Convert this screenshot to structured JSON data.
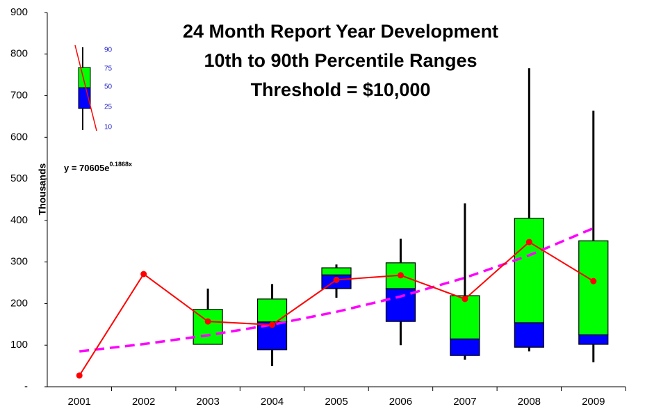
{
  "chart_data": {
    "type": "box",
    "title": [
      "24 Month Report Year Development",
      "10th to 90th Percentile Ranges",
      "Threshold = $10,000"
    ],
    "y_label": "Thousands",
    "equation": {
      "base": "y = 70605e",
      "exponent": "0.1868x"
    },
    "categories": [
      "2001",
      "2002",
      "2003",
      "2004",
      "2005",
      "2006",
      "2007",
      "2008",
      "2009"
    ],
    "series": [
      {
        "name": "90",
        "values": [
          null,
          null,
          236,
          247,
          294,
          356,
          441,
          766,
          664
        ]
      },
      {
        "name": "75",
        "color": "#00ff00",
        "values": [
          null,
          null,
          186,
          211,
          286,
          298,
          219,
          405,
          351
        ]
      },
      {
        "name": "50",
        "values": [
          null,
          null,
          102,
          156,
          269,
          236,
          115,
          154,
          125
        ]
      },
      {
        "name": "25",
        "color": "#0000ff",
        "values": [
          null,
          null,
          102,
          89,
          236,
          157,
          75,
          95,
          102
        ]
      },
      {
        "name": "10",
        "values": [
          null,
          null,
          102,
          50,
          214,
          100,
          65,
          85,
          59
        ]
      }
    ],
    "mean": {
      "color": "#ff0000",
      "values": [
        27,
        271,
        157,
        149,
        257,
        268,
        211,
        348,
        254
      ]
    },
    "trend": {
      "color": "#ff00ff",
      "values": [
        85.1,
        102.6,
        123.8,
        149.3,
        180.1,
        217.2,
        262.0,
        316.0,
        381.2
      ]
    },
    "ylim": [
      0,
      900
    ],
    "yticks": [
      {
        "value": 0,
        "label": "-"
      },
      100,
      200,
      300,
      400,
      500,
      600,
      700,
      800,
      900
    ]
  }
}
